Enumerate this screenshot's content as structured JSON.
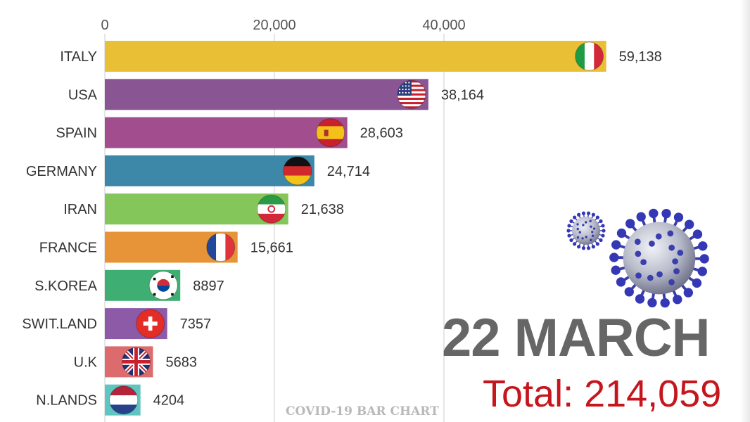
{
  "chart_data": {
    "type": "bar",
    "orientation": "horizontal",
    "categories": [
      "ITALY",
      "USA",
      "SPAIN",
      "GERMANY",
      "IRAN",
      "FRANCE",
      "S.KOREA",
      "SWIT.LAND",
      "U.K",
      "N.LANDS"
    ],
    "values": [
      59138,
      38164,
      28603,
      24714,
      21638,
      15661,
      8897,
      7357,
      5683,
      4204
    ],
    "value_labels": [
      "59,138",
      "38,164",
      "28,603",
      "24,714",
      "21,638",
      "15,661",
      "8897",
      "7357",
      "5683",
      "4204"
    ],
    "bar_colors": [
      "#e9bf36",
      "#8a5593",
      "#a24d8d",
      "#3d87a8",
      "#85c65a",
      "#e69437",
      "#3fae72",
      "#8c5aa7",
      "#dd6b6e",
      "#5fc5c0"
    ],
    "flag_icons": [
      "italy-flag",
      "usa-flag",
      "spain-flag",
      "germany-flag",
      "iran-flag",
      "france-flag",
      "south-korea-flag",
      "switzerland-flag",
      "uk-flag",
      "netherlands-flag"
    ],
    "xticks": [
      0,
      20000,
      40000
    ],
    "xtick_labels": [
      "0",
      "20,000",
      "40,000"
    ],
    "xlim": [
      0,
      60000
    ],
    "grid": true,
    "title": "",
    "xlabel": "",
    "ylabel": ""
  },
  "date_label": "22 MARCH",
  "total_label": "Total: 214,059",
  "footer_title": "COVID-19 BAR CHART",
  "decorations": [
    "coronavirus-icon",
    "coronavirus-icon"
  ],
  "colors": {
    "date": "#666666",
    "total": "#c5161d",
    "footer": "#b9b9b9",
    "gridline": "#d6d6d6"
  }
}
